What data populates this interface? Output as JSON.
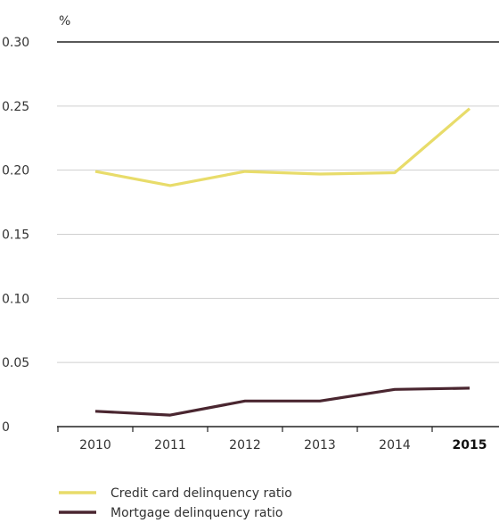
{
  "chart_data": {
    "type": "line",
    "title": "",
    "xlabel": "",
    "ylabel": "%",
    "ylim": [
      0,
      0.3
    ],
    "yticks": [
      "0",
      "0.05",
      "0.10",
      "0.15",
      "0.20",
      "0.25",
      "0.30"
    ],
    "ytick_values": [
      0,
      0.05,
      0.1,
      0.15,
      0.2,
      0.25,
      0.3
    ],
    "categories": [
      "2010",
      "2011",
      "2012",
      "2013",
      "2014",
      "2015"
    ],
    "highlight_category": "2015",
    "grid": true,
    "legend_position": "bottom-left",
    "series": [
      {
        "name": "Credit card delinquency ratio",
        "color": "#e8dc6a",
        "values": [
          0.199,
          0.188,
          0.199,
          0.197,
          0.198,
          0.248
        ]
      },
      {
        "name": "Mortgage delinquency ratio",
        "color": "#4a2630",
        "values": [
          0.012,
          0.009,
          0.02,
          0.02,
          0.029,
          0.03
        ]
      }
    ]
  }
}
